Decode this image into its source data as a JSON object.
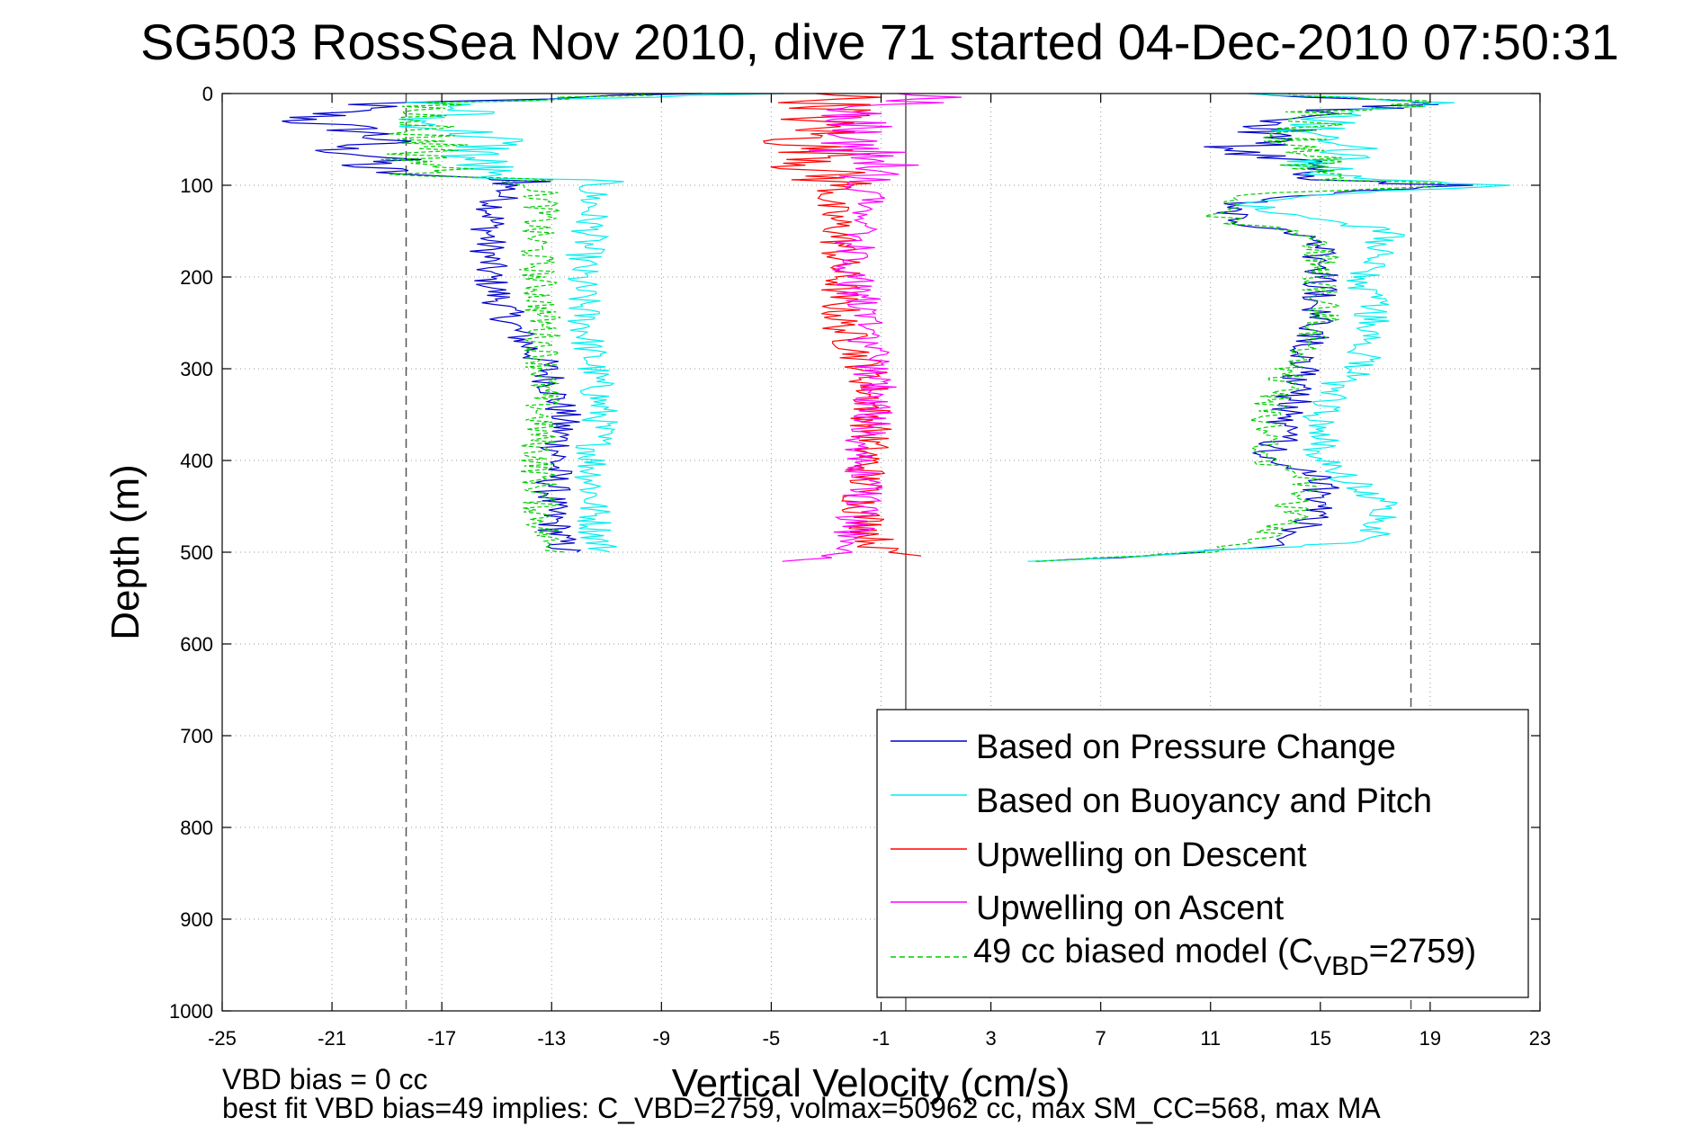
{
  "chart_data": {
    "type": "line",
    "title": "SG503 RossSea Nov 2010, dive 71 started 04-Dec-2010 07:50:31",
    "xlabel": "Vertical Velocity (cm/s)",
    "ylabel": "Depth (m)",
    "xlim": [
      -25,
      23
    ],
    "ylim": [
      0,
      1000
    ],
    "y_reversed": true,
    "grid": true,
    "xticks": [
      -25,
      -21,
      -17,
      -13,
      -9,
      -5,
      -1,
      3,
      7,
      11,
      15,
      19,
      23
    ],
    "yticks": [
      0,
      100,
      200,
      300,
      400,
      500,
      600,
      700,
      800,
      900,
      1000
    ],
    "legend_position": "bottom-right",
    "reference_lines": [
      {
        "x": -18.3,
        "style": "dashed",
        "color": "#555555"
      },
      {
        "x": 18.3,
        "style": "dashed",
        "color": "#555555"
      },
      {
        "x": -0.1,
        "style": "solid",
        "color": "#555555"
      }
    ],
    "series": [
      {
        "name": "Based on Pressure Change",
        "color": "#0000cc",
        "style": "solid",
        "descent": {
          "depth": [
            0,
            10,
            20,
            30,
            40,
            50,
            60,
            70,
            80,
            90,
            95,
            100,
            120,
            150,
            200,
            250,
            300,
            350,
            400,
            450,
            490,
            500
          ],
          "velocity": [
            -8,
            -19,
            -21,
            -22,
            -20,
            -19,
            -21,
            -19,
            -20,
            -18,
            -13,
            -14.5,
            -15,
            -15.3,
            -15.3,
            -14.5,
            -13.2,
            -12.6,
            -12.8,
            -13.1,
            -12.7,
            -12.5
          ]
        },
        "ascent": {
          "depth": [
            510,
            500,
            490,
            480,
            460,
            450,
            420,
            400,
            380,
            360,
            340,
            320,
            300,
            280,
            250,
            200,
            160,
            150,
            140,
            120,
            110,
            100,
            95,
            90,
            80,
            60,
            50,
            40,
            30,
            20,
            10,
            0
          ],
          "velocity": [
            5,
            10.5,
            14,
            14,
            15,
            15,
            15,
            13,
            13.5,
            13.5,
            14,
            14,
            14.5,
            14.5,
            15,
            15,
            15,
            13.5,
            11.5,
            12,
            15,
            20,
            15,
            15,
            14.5,
            12,
            13,
            13.5,
            14,
            15,
            20,
            13
          ]
        }
      },
      {
        "name": "Based on Buoyancy and Pitch",
        "color": "#00eeee",
        "style": "solid",
        "descent": {
          "depth": [
            0,
            10,
            20,
            30,
            40,
            50,
            60,
            70,
            80,
            90,
            95,
            100,
            150,
            200,
            250,
            300,
            350,
            400,
            450,
            490,
            500
          ],
          "velocity": [
            -6,
            -17,
            -16,
            -18,
            -16.5,
            -15,
            -15.5,
            -16,
            -15.5,
            -16,
            -12,
            -11.5,
            -11.6,
            -12,
            -11.8,
            -11.5,
            -11.2,
            -11.5,
            -11.5,
            -11.3,
            -11
          ]
        },
        "ascent": {
          "depth": [
            510,
            500,
            490,
            480,
            460,
            450,
            420,
            400,
            350,
            320,
            300,
            250,
            200,
            150,
            140,
            120,
            110,
            100,
            95,
            90,
            80,
            60,
            50,
            40,
            30,
            20,
            10,
            0
          ],
          "velocity": [
            5,
            10.5,
            16,
            17,
            17.5,
            17.5,
            16,
            15,
            15,
            15.5,
            16.5,
            17,
            16.5,
            17.5,
            15.5,
            12,
            15,
            22,
            17,
            16,
            15,
            16,
            15,
            14.5,
            15,
            16,
            19,
            13
          ]
        }
      },
      {
        "name": "Upwelling on Descent",
        "color": "#ff0000",
        "style": "solid",
        "depth": [
          0,
          10,
          20,
          30,
          40,
          50,
          60,
          70,
          80,
          90,
          100,
          120,
          150,
          200,
          250,
          300,
          350,
          400,
          450,
          490,
          500,
          505
        ],
        "velocity": [
          -2,
          -3,
          -2.5,
          -3.5,
          -3,
          -4,
          -3.5,
          -2.5,
          -3.5,
          -3,
          -2.5,
          -3,
          -2.5,
          -2.5,
          -2.5,
          -1.5,
          -1.3,
          -1.5,
          -1.7,
          -1.2,
          -1,
          1
        ]
      },
      {
        "name": "Upwelling on Ascent",
        "color": "#ff00ff",
        "style": "solid",
        "depth": [
          510,
          505,
          500,
          490,
          470,
          450,
          420,
          400,
          380,
          350,
          300,
          250,
          200,
          150,
          120,
          100,
          80,
          60,
          50,
          40,
          30,
          20,
          10,
          0
        ],
        "velocity": [
          -4.5,
          -2.5,
          -2,
          -2,
          -2,
          -1.7,
          -1.8,
          -1.6,
          -1.7,
          -1.3,
          -1.2,
          -1.6,
          -2,
          -2,
          -1.5,
          -1.5,
          -1,
          -2,
          -1.5,
          -2,
          -2.5,
          -2,
          0,
          1
        ]
      },
      {
        "name": "49 cc biased model (C_VBD=2759)",
        "color": "#00cc00",
        "style": "dashed",
        "descent": {
          "depth": [
            0,
            10,
            20,
            30,
            40,
            50,
            60,
            70,
            80,
            90,
            95,
            100,
            120,
            150,
            200,
            250,
            300,
            350,
            400,
            450,
            490,
            500
          ],
          "velocity": [
            -9,
            -17,
            -18,
            -17,
            -18,
            -17.5,
            -17,
            -18,
            -17,
            -17.5,
            -13.5,
            -13.5,
            -13.3,
            -13.6,
            -13.5,
            -13.3,
            -13.3,
            -13.4,
            -13.5,
            -13.4,
            -13.2,
            -12.5
          ]
        },
        "ascent": {
          "depth": [
            510,
            500,
            490,
            480,
            460,
            450,
            420,
            400,
            380,
            350,
            300,
            280,
            250,
            200,
            160,
            150,
            140,
            120,
            110,
            100,
            95,
            90,
            80,
            60,
            50,
            40,
            30,
            20,
            10,
            0
          ],
          "velocity": [
            5,
            11,
            12.5,
            13,
            14,
            14,
            14.5,
            13,
            13,
            13,
            14,
            14.5,
            15,
            15,
            15,
            14,
            11.5,
            11.5,
            12,
            20,
            16,
            15.5,
            15,
            15,
            14,
            14.5,
            15,
            15,
            20,
            13
          ]
        }
      }
    ]
  },
  "footer": {
    "line1": "VBD bias = 0 cc",
    "line2": "best fit VBD bias=49 implies: C_VBD=2759, volmax=50962 cc, max SM_CC=568, max MA"
  },
  "legend": {
    "items": [
      {
        "label": "Based on Pressure Change",
        "color": "#0000cc",
        "dashed": false
      },
      {
        "label": "Based on Buoyancy and Pitch",
        "color": "#00eeee",
        "dashed": false
      },
      {
        "label": "Upwelling on Descent",
        "color": "#ff0000",
        "dashed": false
      },
      {
        "label": "Upwelling on Ascent",
        "color": "#ff00ff",
        "dashed": false
      },
      {
        "label_prefix": "49 cc biased model (C",
        "label_sub": "VBD",
        "label_suffix": "=2759)",
        "color": "#00cc00",
        "dashed": true
      }
    ]
  }
}
